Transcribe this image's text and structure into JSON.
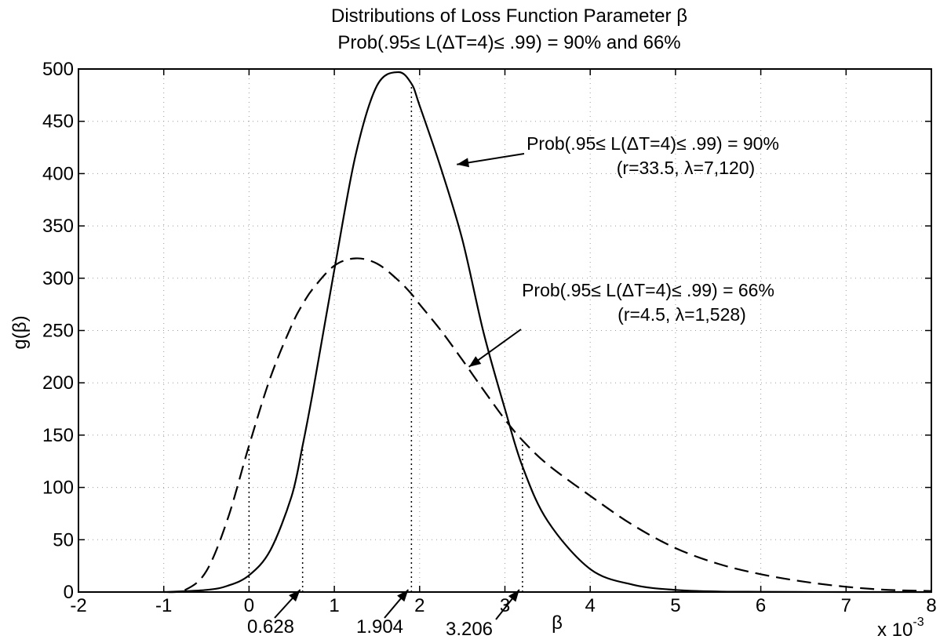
{
  "chart_data": {
    "type": "line",
    "title": "Distributions of Loss Function Parameter β",
    "subtitle": "Prob(.95≤ L(ΔT=4)≤ .99) = 90% and 66%",
    "xlabel": "β",
    "ylabel": "g(β)",
    "x_multiplier": "x 10",
    "x_multiplier_exp": "-3",
    "xlim": [
      -2,
      8
    ],
    "ylim": [
      0,
      500
    ],
    "xticks": [
      "-2",
      "-1",
      "0",
      "1",
      "2",
      "3",
      "4",
      "5",
      "6",
      "7",
      "8"
    ],
    "yticks": [
      "0",
      "50",
      "100",
      "150",
      "200",
      "250",
      "300",
      "350",
      "400",
      "450",
      "500"
    ],
    "grid": "dotted",
    "series": [
      {
        "style": "solid",
        "x": [
          -1.0,
          -0.5,
          -0.25,
          0.0,
          0.25,
          0.5,
          0.628,
          0.75,
          1.0,
          1.25,
          1.5,
          1.75,
          1.904,
          2.0,
          2.25,
          2.5,
          2.75,
          3.0,
          3.206,
          3.5,
          4.0,
          4.5,
          5.0,
          5.5,
          6.0,
          7.0,
          8.0
        ],
        "y": [
          0,
          2,
          6,
          16,
          40,
          92,
          140,
          192,
          308,
          418,
          484,
          497,
          486,
          465,
          405,
          337,
          248,
          175,
          120,
          68,
          22,
          7,
          2,
          0.5,
          0.2,
          0,
          0
        ]
      },
      {
        "style": "dashed",
        "x": [
          -1.0,
          -0.75,
          -0.5,
          -0.25,
          0.0,
          0.25,
          0.5,
          0.628,
          0.75,
          1.0,
          1.25,
          1.5,
          1.75,
          1.904,
          2.0,
          2.25,
          2.5,
          2.75,
          3.0,
          3.206,
          3.5,
          4.0,
          4.5,
          5.0,
          5.5,
          6.0,
          6.5,
          7.0,
          7.5,
          8.0
        ],
        "y": [
          0,
          2,
          20,
          70,
          140,
          205,
          255,
          275,
          290,
          312,
          319,
          314,
          298,
          285,
          275,
          250,
          222,
          193,
          165,
          145,
          122,
          92,
          64,
          42,
          27,
          17,
          10,
          5,
          2,
          1
        ]
      }
    ],
    "reference_lines": [
      {
        "x": 0.0,
        "y": 140
      },
      {
        "x": 0.628,
        "y": 140
      },
      {
        "x": 1.904,
        "y": 486
      },
      {
        "x": 3.206,
        "y": 145
      }
    ],
    "annotations": [
      {
        "label_1": "Prob(.95≤ L(ΔT=4)≤ .99) = 90%",
        "label_2": "(r=33.5, λ=7,120)",
        "points_to": {
          "x": 2.4,
          "y": 408
        }
      },
      {
        "label_1": "Prob(.95≤ L(ΔT=4)≤ .99) = 66%",
        "label_2": "(r=4.5, λ=1,528)",
        "points_to": {
          "x": 2.55,
          "y": 213
        }
      }
    ],
    "marked_values": [
      {
        "label": "0.628",
        "x": 0.628
      },
      {
        "label": "1.904",
        "x": 1.904
      },
      {
        "label": "3.206",
        "x": 3.206
      }
    ]
  }
}
